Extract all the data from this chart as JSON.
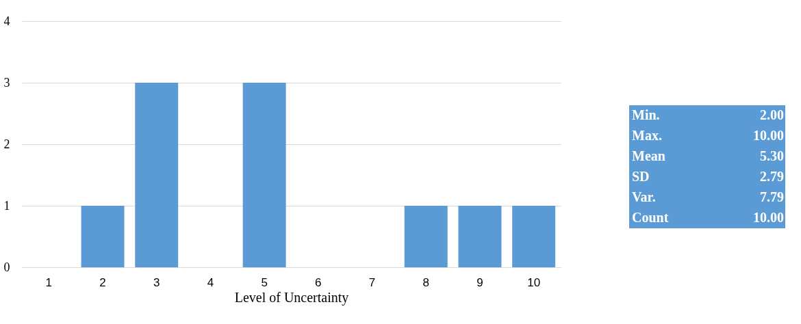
{
  "chart_data": [
    {
      "type": "bar",
      "categories": [
        "1",
        "2",
        "3",
        "4",
        "5",
        "6",
        "7",
        "8",
        "9",
        "10"
      ],
      "values": [
        0,
        1,
        3,
        0,
        3,
        0,
        0,
        1,
        1,
        1
      ],
      "color": "#5b9bd5",
      "xlabel": "Level of Uncertainty",
      "ylim": [
        0,
        4
      ],
      "yticks": [
        0,
        1,
        2,
        3,
        4
      ],
      "grid": "y"
    },
    {
      "type": "other",
      "categories": [
        "Min.",
        "Max.",
        "Mean",
        "SD",
        "Var.",
        "Count"
      ],
      "value_labels": [
        "2.00",
        "10.00",
        "5.30",
        "2.79",
        "7.79",
        "10.00"
      ],
      "color": "#5b9bd5"
    }
  ]
}
